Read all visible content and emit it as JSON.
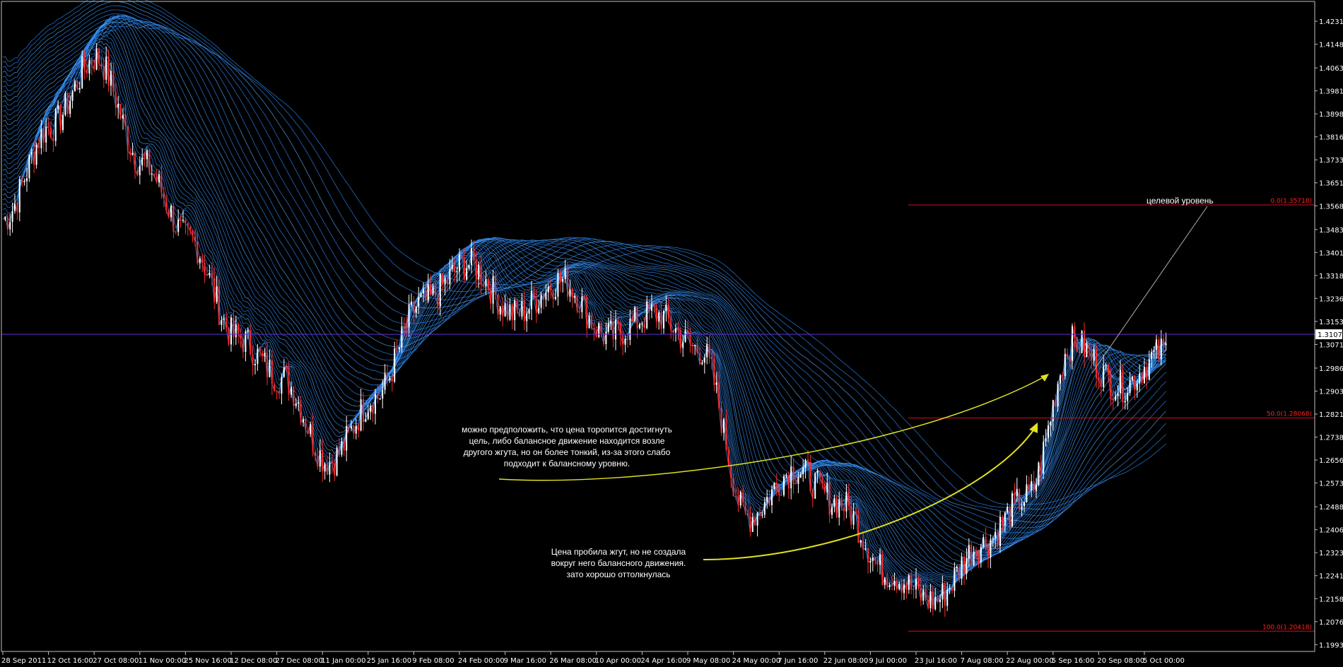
{
  "colors": {
    "background": "#000000",
    "frame": "#c0c0c0",
    "ribbon": "#2f8fff",
    "ribbon_bright": "#5fb0ff",
    "candle_up": "#ffffff",
    "candle_down": "#ff2a2a",
    "fib_line": "#d01020",
    "current_price_line": "#6030d0",
    "arrow": "#e0e020",
    "pointer": "#b0b0b0"
  },
  "chart_data": {
    "type": "line",
    "y_axis": {
      "ylim": [
        1.1969,
        1.4297
      ],
      "tick_labels": [
        "1.42310",
        "1.41485",
        "1.40635",
        "1.39810",
        "1.38985",
        "1.38160",
        "1.37335",
        "1.36510",
        "1.35685",
        "1.34835",
        "1.34010",
        "1.33185",
        "1.32360",
        "1.31535",
        "1.30710",
        "1.29860",
        "1.29035",
        "1.28210",
        "1.27385",
        "1.26560",
        "1.25735",
        "1.24885",
        "1.24060",
        "1.23235",
        "1.22410",
        "1.21585",
        "1.20760",
        "1.19935"
      ],
      "current_price": "1.31074"
    },
    "x_axis": {
      "tick_labels": [
        "28 Sep 2011",
        "12 Oct 16:00",
        "27 Oct 08:00",
        "11 Nov 00:00",
        "25 Nov 16:00",
        "12 Dec 08:00",
        "27 Dec 08:00",
        "11 Jan 00:00",
        "25 Jan 16:00",
        "9 Feb 08:00",
        "24 Feb 00:00",
        "9 Mar 16:00",
        "26 Mar 08:00",
        "10 Apr 00:00",
        "24 Apr 16:00",
        "9 May 08:00",
        "24 May 00:00",
        "7 Jun 16:00",
        "22 Jun 08:00",
        "9 Jul 00:00",
        "23 Jul 16:00",
        "7 Aug 08:00",
        "22 Aug 00:00",
        "5 Sep 16:00",
        "20 Sep 08:00",
        "5 Oct 00:00"
      ]
    },
    "price_path": {
      "x": [
        "28 Sep 2011",
        "12 Oct 16:00",
        "27 Oct 08:00",
        "11 Nov 00:00",
        "25 Nov 16:00",
        "12 Dec 08:00",
        "27 Dec 08:00",
        "11 Jan 00:00",
        "25 Jan 16:00",
        "9 Feb 08:00",
        "24 Feb 00:00",
        "9 Mar 16:00",
        "26 Mar 08:00",
        "10 Apr 00:00",
        "24 Apr 16:00",
        "9 May 08:00",
        "24 May 00:00",
        "7 Jun 16:00",
        "22 Jun 08:00",
        "9 Jul 00:00",
        "23 Jul 16:00",
        "7 Aug 08:00",
        "22 Aug 00:00",
        "5 Sep 16:00",
        "20 Sep 08:00",
        "5 Oct 00:00"
      ],
      "values": [
        1.352,
        1.385,
        1.41,
        1.372,
        1.345,
        1.31,
        1.295,
        1.265,
        1.288,
        1.322,
        1.336,
        1.318,
        1.33,
        1.31,
        1.318,
        1.305,
        1.245,
        1.262,
        1.25,
        1.225,
        1.215,
        1.235,
        1.252,
        1.308,
        1.292,
        1.305
      ]
    },
    "fibonacci_levels": [
      {
        "label": "0.0(1.35718)",
        "value": 1.35718
      },
      {
        "label": "50.0(1.28068)",
        "value": 1.28068
      },
      {
        "label": "100.0(1.20418)",
        "value": 1.20418
      }
    ],
    "annotations": [
      {
        "id": "target",
        "text": "целевой уровень"
      },
      {
        "id": "balance_note",
        "lines": [
          "можно предположить, что цена торопится достигнуть",
          "цель, либо балансное движение находится возле",
          "другого жгута, но он более тонкий, из-за этого слабо",
          "подходит к балансному уровню."
        ]
      },
      {
        "id": "breakout_note",
        "lines": [
          "Цена пробила жгут, но не создала",
          "вокруг него балансного движения.",
          "зато хорошо оттолкнулась"
        ]
      }
    ]
  }
}
